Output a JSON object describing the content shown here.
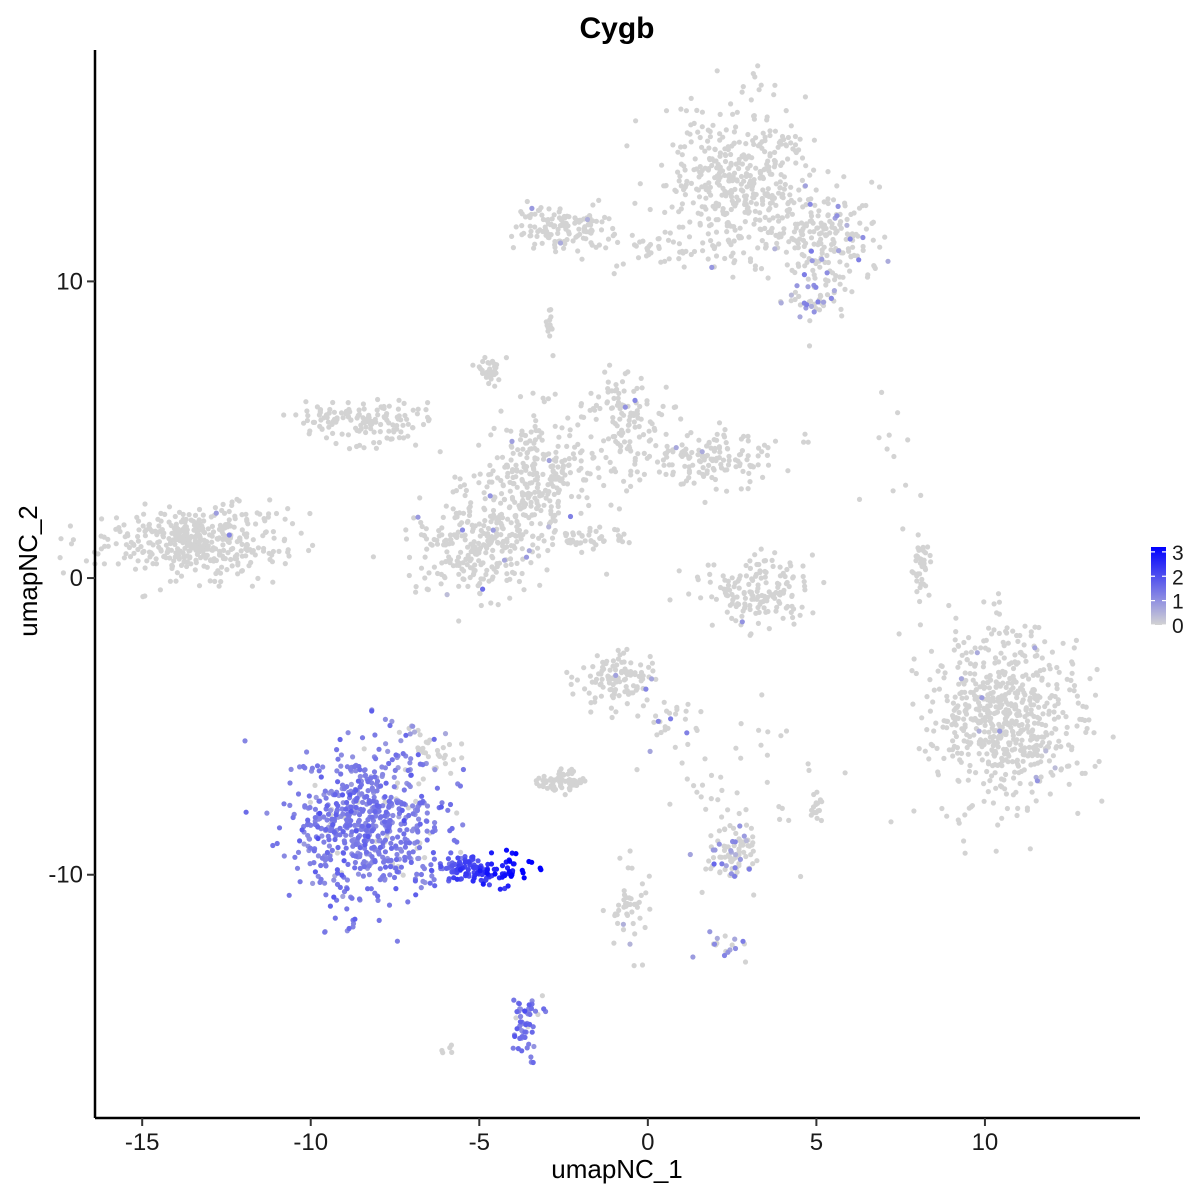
{
  "chart_data": {
    "type": "scatter",
    "title": "Cygb",
    "xlabel": "umapNC_1",
    "ylabel": "umapNC_2",
    "xlim": [
      -16.4,
      14.6
    ],
    "ylim": [
      -18.2,
      17.8
    ],
    "x_ticks": [
      -15,
      -10,
      -5,
      0,
      5,
      10
    ],
    "x_tick_labels": [
      "-15",
      "-10",
      "-5",
      "0",
      "5",
      "10"
    ],
    "y_ticks": [
      -10,
      0,
      10
    ],
    "y_tick_labels": [
      "-10",
      "0",
      "10"
    ],
    "grid": false,
    "legend": {
      "position": "right",
      "type": "colorbar",
      "range": [
        0,
        3.2
      ],
      "ticks": [
        0,
        1,
        2,
        3
      ],
      "tick_labels": [
        "0",
        "1",
        "2",
        "3"
      ],
      "low_color": "#d3d3d3",
      "high_color": "#0000ff"
    },
    "point_color_low": "#d3d3d3",
    "point_color_high": "#0000ff",
    "clusters": [
      {
        "cx": 2.8,
        "cy": 13.5,
        "sx": 1.1,
        "sy": 1.3,
        "n": 420,
        "expr_frac": 0.01,
        "expr_mean": 0.6,
        "expr_grad": 0
      },
      {
        "cx": 5.2,
        "cy": 11.3,
        "sx": 0.8,
        "sy": 0.9,
        "n": 200,
        "expr_frac": 0.06,
        "expr_mean": 0.9,
        "expr_grad": 0
      },
      {
        "cx": -2.6,
        "cy": 11.8,
        "sx": 0.7,
        "sy": 0.4,
        "n": 130,
        "expr_frac": 0.03,
        "expr_mean": 0.8,
        "expr_grad": 0
      },
      {
        "cx": 0.3,
        "cy": 11.2,
        "sx": 1.6,
        "sy": 0.3,
        "n": 60,
        "expr_frac": 0.03,
        "expr_mean": 0.8,
        "expr_grad": 0
      },
      {
        "cx": 4.9,
        "cy": 9.3,
        "sx": 0.4,
        "sy": 0.3,
        "n": 35,
        "expr_frac": 0.35,
        "expr_mean": 1.0,
        "expr_grad": 0
      },
      {
        "cx": -2.9,
        "cy": 8.7,
        "sx": 0.1,
        "sy": 0.3,
        "n": 12,
        "expr_frac": 0,
        "expr_mean": 0,
        "expr_grad": 0
      },
      {
        "cx": -8.3,
        "cy": 5.3,
        "sx": 0.9,
        "sy": 0.4,
        "n": 140,
        "expr_frac": 0.01,
        "expr_mean": 0.6,
        "expr_grad": 0
      },
      {
        "cx": -4.7,
        "cy": 7.0,
        "sx": 0.2,
        "sy": 0.2,
        "n": 35,
        "expr_frac": 0,
        "expr_mean": 0,
        "expr_grad": 0
      },
      {
        "cx": -3.3,
        "cy": 3.3,
        "sx": 1.0,
        "sy": 1.1,
        "n": 300,
        "expr_frac": 0.03,
        "expr_mean": 0.8,
        "expr_grad": 0
      },
      {
        "cx": -0.6,
        "cy": 5.4,
        "sx": 0.6,
        "sy": 0.7,
        "n": 110,
        "expr_frac": 0.02,
        "expr_mean": 0.7,
        "expr_grad": 0
      },
      {
        "cx": 1.6,
        "cy": 4.0,
        "sx": 1.1,
        "sy": 0.5,
        "n": 160,
        "expr_frac": 0.02,
        "expr_mean": 0.7,
        "expr_grad": 0
      },
      {
        "cx": -5.0,
        "cy": 1.0,
        "sx": 1.0,
        "sy": 0.9,
        "n": 260,
        "expr_frac": 0.03,
        "expr_mean": 0.8,
        "expr_grad": 0
      },
      {
        "cx": -2.2,
        "cy": 1.3,
        "sx": 0.8,
        "sy": 0.2,
        "n": 45,
        "expr_frac": 0,
        "expr_mean": 0,
        "expr_grad": 0
      },
      {
        "cx": -13.4,
        "cy": 1.2,
        "sx": 1.3,
        "sy": 0.6,
        "n": 420,
        "expr_frac": 0.005,
        "expr_mean": 0.6,
        "expr_grad": 0
      },
      {
        "cx": 3.3,
        "cy": -0.5,
        "sx": 0.8,
        "sy": 0.6,
        "n": 160,
        "expr_frac": 0.01,
        "expr_mean": 0.6,
        "expr_grad": 0
      },
      {
        "cx": 8.1,
        "cy": 0.3,
        "sx": 0.15,
        "sy": 0.5,
        "n": 40,
        "expr_frac": 0,
        "expr_mean": 0,
        "expr_grad": 0
      },
      {
        "cx": 10.6,
        "cy": -4.6,
        "sx": 1.1,
        "sy": 1.4,
        "n": 650,
        "expr_frac": 0.01,
        "expr_mean": 0.6,
        "expr_grad": 0
      },
      {
        "cx": -0.9,
        "cy": -3.4,
        "sx": 0.6,
        "sy": 0.5,
        "n": 110,
        "expr_frac": 0.06,
        "expr_mean": 0.9,
        "expr_grad": 0
      },
      {
        "cx": 0.6,
        "cy": -4.8,
        "sx": 0.4,
        "sy": 0.4,
        "n": 25,
        "expr_frac": 0.15,
        "expr_mean": 1.0,
        "expr_grad": 0
      },
      {
        "cx": -2.5,
        "cy": -6.9,
        "sx": 0.4,
        "sy": 0.2,
        "n": 70,
        "expr_frac": 0,
        "expr_mean": 0,
        "expr_grad": 0
      },
      {
        "cx": 2.5,
        "cy": -9.2,
        "sx": 0.4,
        "sy": 0.5,
        "n": 85,
        "expr_frac": 0.2,
        "expr_mean": 1.0,
        "expr_grad": 0
      },
      {
        "cx": 5.0,
        "cy": -7.7,
        "sx": 0.1,
        "sy": 0.2,
        "n": 15,
        "expr_frac": 0,
        "expr_mean": 0,
        "expr_grad": 0
      },
      {
        "cx": -0.6,
        "cy": -11.1,
        "sx": 0.3,
        "sy": 0.7,
        "n": 45,
        "expr_frac": 0.02,
        "expr_mean": 0.6,
        "expr_grad": 0
      },
      {
        "cx": 2.3,
        "cy": -12.4,
        "sx": 0.3,
        "sy": 0.2,
        "n": 18,
        "expr_frac": 0.5,
        "expr_mean": 1.0,
        "expr_grad": 0
      },
      {
        "cx": -8.4,
        "cy": -8.3,
        "sx": 1.1,
        "sy": 1.3,
        "n": 650,
        "expr_frac": 0.95,
        "expr_mean": 1.3,
        "expr_grad": 0
      },
      {
        "cx": -5.2,
        "cy": -9.8,
        "sx": 0.8,
        "sy": 0.3,
        "n": 140,
        "expr_frac": 1.0,
        "expr_mean": 2.2,
        "expr_grad": 0.5
      },
      {
        "cx": -3.6,
        "cy": -15.0,
        "sx": 0.2,
        "sy": 0.6,
        "n": 55,
        "expr_frac": 0.9,
        "expr_mean": 1.4,
        "expr_grad": 0
      },
      {
        "cx": -6.3,
        "cy": -6.0,
        "sx": 0.5,
        "sy": 0.5,
        "n": 40,
        "expr_frac": 0.3,
        "expr_mean": 0.9,
        "expr_grad": 0
      },
      {
        "cx": 7.6,
        "cy": 5.0,
        "sx": 0.6,
        "sy": 1.3,
        "n": 12,
        "expr_frac": 0,
        "expr_mean": 0,
        "expr_grad": 0
      },
      {
        "cx": 2.7,
        "cy": -7.0,
        "sx": 1.5,
        "sy": 1.3,
        "n": 45,
        "expr_frac": 0,
        "expr_mean": 0,
        "expr_grad": 0
      },
      {
        "cx": -6.0,
        "cy": -16.0,
        "sx": 0.2,
        "sy": 0.2,
        "n": 5,
        "expr_frac": 0,
        "expr_mean": 0,
        "expr_grad": 0
      }
    ]
  }
}
